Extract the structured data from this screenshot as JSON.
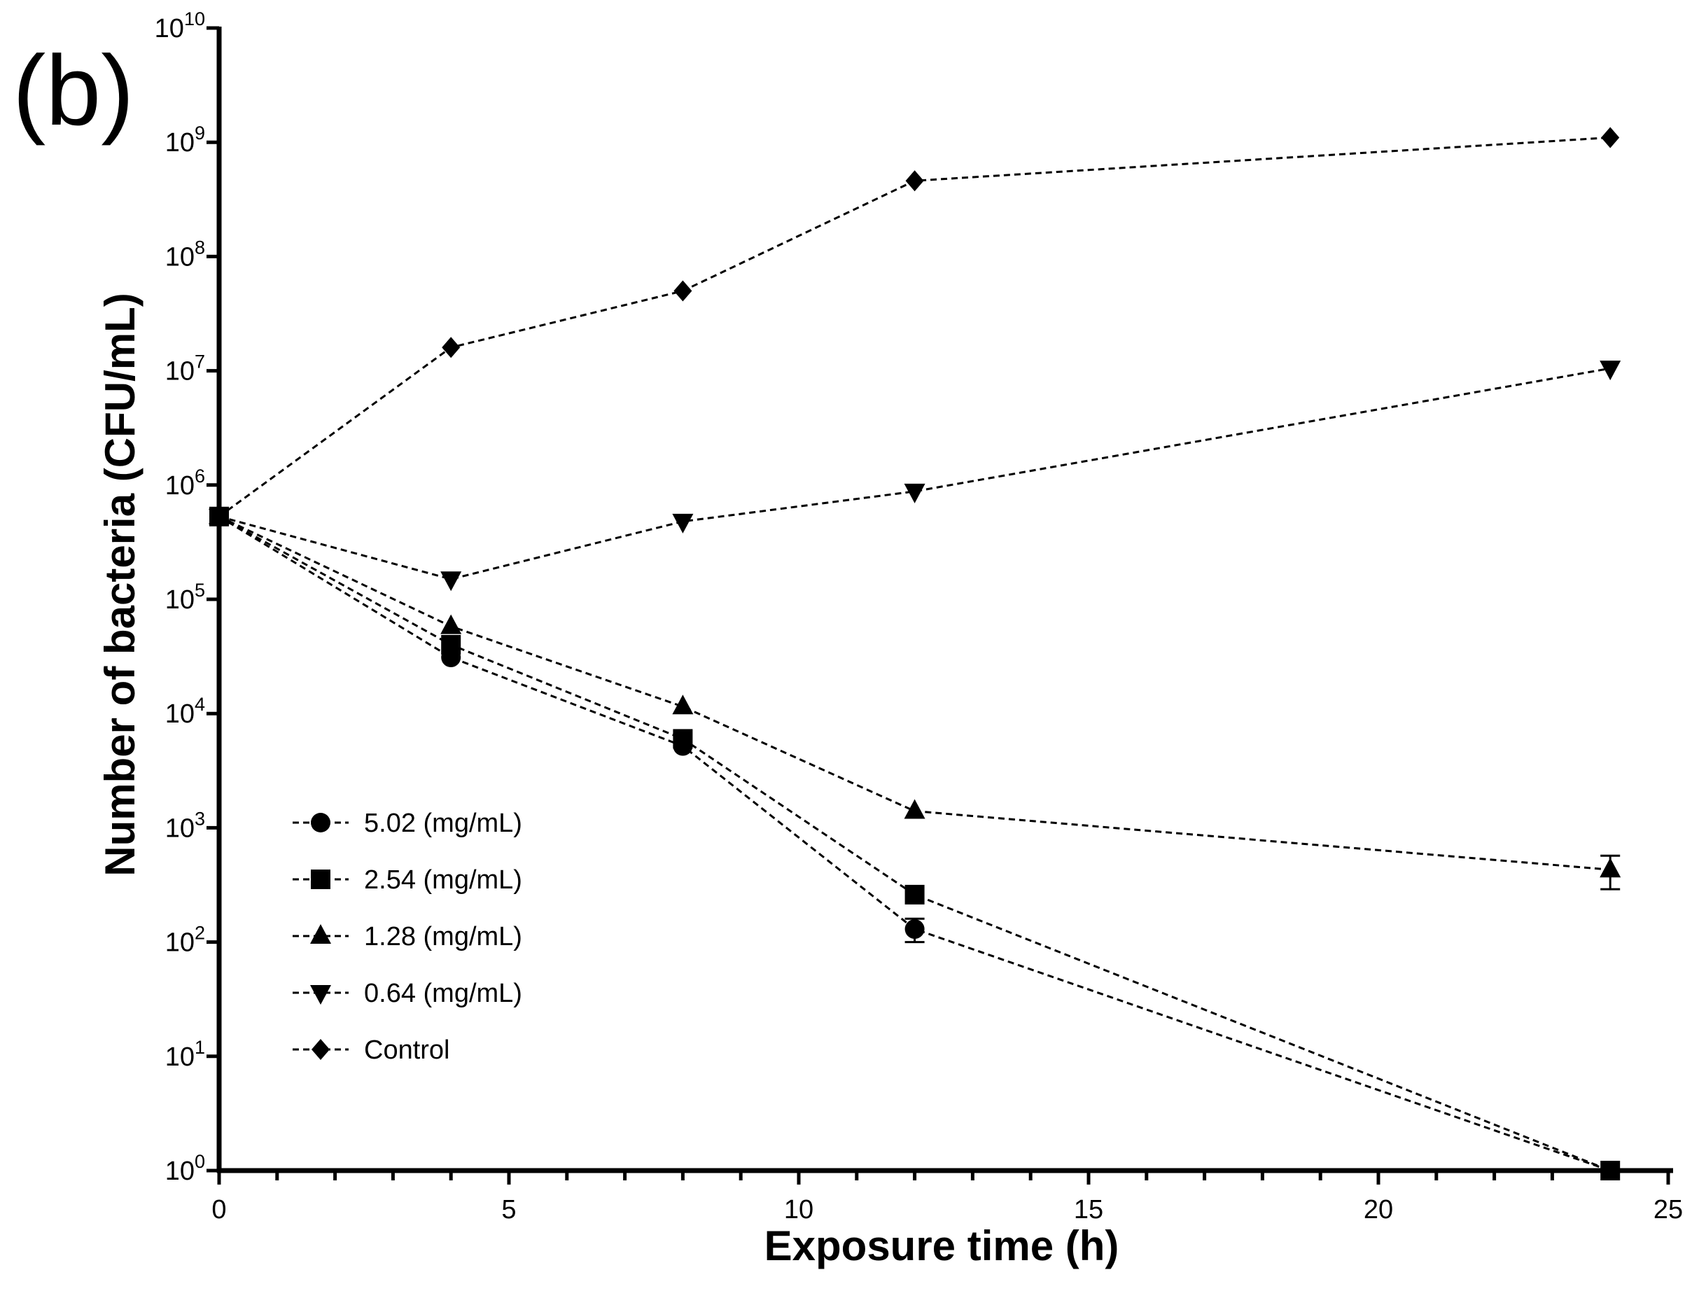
{
  "panel_label": "(b)",
  "chart_data": {
    "type": "line",
    "title": "",
    "xlabel": "Exposure time (h)",
    "ylabel": "Number of bacteria (CFU/mL)",
    "xlim": [
      0,
      25
    ],
    "ylim": [
      1,
      10000000000
    ],
    "yscale": "log",
    "x_ticks": [
      "0",
      "5",
      "10",
      "15",
      "20",
      "25"
    ],
    "y_ticks": [
      {
        "base": "10",
        "exp": "0"
      },
      {
        "base": "10",
        "exp": "1"
      },
      {
        "base": "10",
        "exp": "2"
      },
      {
        "base": "10",
        "exp": "3"
      },
      {
        "base": "10",
        "exp": "4"
      },
      {
        "base": "10",
        "exp": "5"
      },
      {
        "base": "10",
        "exp": "6"
      },
      {
        "base": "10",
        "exp": "7"
      },
      {
        "base": "10",
        "exp": "8"
      },
      {
        "base": "10",
        "exp": "9"
      },
      {
        "base": "10",
        "exp": "10"
      }
    ],
    "legend_position": "lower-left",
    "series": [
      {
        "name": "5.02 (mg/mL)",
        "marker": "circle",
        "x": [
          0,
          4,
          8,
          12,
          24
        ],
        "y": [
          530000,
          31000,
          5200,
          130,
          1
        ],
        "err": [
          0,
          0,
          0,
          30,
          0
        ]
      },
      {
        "name": "2.54 (mg/mL)",
        "marker": "square",
        "x": [
          0,
          4,
          8,
          12,
          24
        ],
        "y": [
          530000,
          40000,
          6000,
          260,
          1
        ],
        "err": [
          0,
          0,
          0,
          0,
          0
        ]
      },
      {
        "name": "1.28 (mg/mL)",
        "marker": "triangle-up",
        "x": [
          0,
          4,
          8,
          12,
          24
        ],
        "y": [
          530000,
          58000,
          11500,
          1400,
          430
        ],
        "err": [
          0,
          0,
          0,
          0,
          140
        ]
      },
      {
        "name": "0.64 (mg/mL)",
        "marker": "triangle-down",
        "x": [
          0,
          4,
          8,
          12,
          24
        ],
        "y": [
          530000,
          150000,
          480000,
          880000,
          10500000
        ],
        "err": [
          0,
          0,
          0,
          0,
          0
        ]
      },
      {
        "name": "Control",
        "marker": "diamond",
        "x": [
          0,
          4,
          8,
          12,
          24
        ],
        "y": [
          530000,
          16000000,
          50000000,
          460000000,
          1100000000
        ],
        "err": [
          0,
          0,
          0,
          0,
          0
        ]
      }
    ]
  }
}
